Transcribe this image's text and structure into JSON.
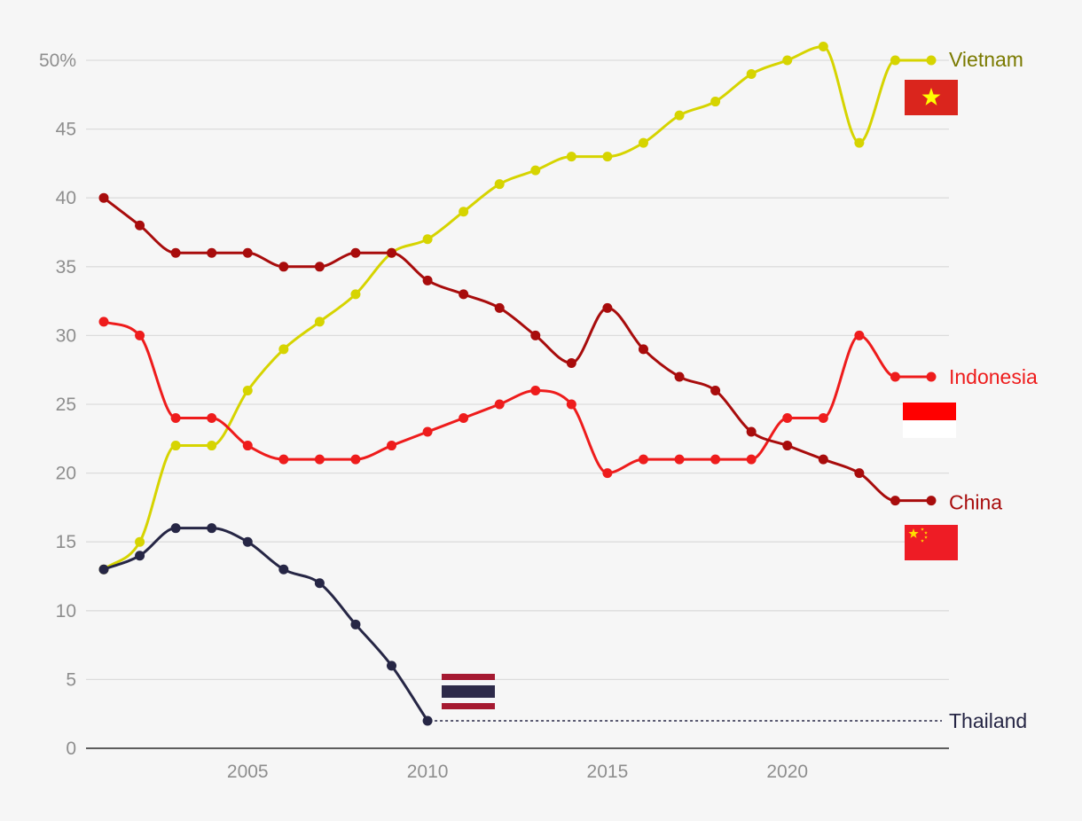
{
  "chart_data": {
    "type": "line",
    "title": "",
    "xlabel": "",
    "ylabel": "",
    "xlim": [
      2000.5,
      2024.5
    ],
    "ylim": [
      0,
      50
    ],
    "x_ticks": [
      2005,
      2010,
      2015,
      2020
    ],
    "x_tick_labels": [
      "2005",
      "2010",
      "2015",
      "2020"
    ],
    "y_ticks": [
      0,
      5,
      10,
      15,
      20,
      25,
      30,
      35,
      40,
      45,
      50
    ],
    "y_tick_labels": [
      "0",
      "5",
      "10",
      "15",
      "20",
      "25",
      "30",
      "35",
      "40",
      "45",
      "50%"
    ],
    "grid": true,
    "series": [
      {
        "name": "Vietnam",
        "color": "#d6d400",
        "label_color": "#7a7a00",
        "flag": "vietnam-flag",
        "x": [
          2001,
          2002,
          2003,
          2004,
          2005,
          2006,
          2007,
          2008,
          2009,
          2010,
          2011,
          2012,
          2013,
          2014,
          2015,
          2016,
          2017,
          2018,
          2019,
          2020,
          2021,
          2022,
          2023,
          2024
        ],
        "values": [
          13,
          15,
          22,
          22,
          26,
          29,
          31,
          33,
          36,
          37,
          39,
          41,
          42,
          43,
          43,
          44,
          46,
          47,
          49,
          50,
          51,
          44,
          50,
          50
        ]
      },
      {
        "name": "Indonesia",
        "color": "#ee1c1c",
        "label_color": "#ee1c1c",
        "flag": "indonesia-flag",
        "x": [
          2001,
          2002,
          2003,
          2004,
          2005,
          2006,
          2007,
          2008,
          2009,
          2010,
          2011,
          2012,
          2013,
          2014,
          2015,
          2016,
          2017,
          2018,
          2019,
          2020,
          2021,
          2022,
          2023,
          2024
        ],
        "values": [
          31,
          30,
          24,
          24,
          22,
          21,
          21,
          21,
          22,
          23,
          24,
          25,
          26,
          25,
          20,
          21,
          21,
          21,
          21,
          24,
          24,
          30,
          27,
          27
        ]
      },
      {
        "name": "China",
        "color": "#a80c0c",
        "label_color": "#a80c0c",
        "flag": "china-flag",
        "x": [
          2001,
          2002,
          2003,
          2004,
          2005,
          2006,
          2007,
          2008,
          2009,
          2010,
          2011,
          2012,
          2013,
          2014,
          2015,
          2016,
          2017,
          2018,
          2019,
          2020,
          2021,
          2022,
          2023,
          2024
        ],
        "values": [
          40,
          38,
          36,
          36,
          36,
          35,
          35,
          36,
          36,
          34,
          33,
          32,
          30,
          28,
          32,
          29,
          27,
          26,
          23,
          22,
          21,
          20,
          18,
          18
        ]
      },
      {
        "name": "Thailand",
        "color": "#262645",
        "label_color": "#262645",
        "flag": "thailand-flag",
        "x": [
          2001,
          2002,
          2003,
          2004,
          2005,
          2006,
          2007,
          2008,
          2009,
          2010
        ],
        "values": [
          13,
          14,
          16,
          16,
          15,
          13,
          12,
          9,
          6,
          2
        ],
        "dashed_extension_to": 2024
      }
    ]
  }
}
